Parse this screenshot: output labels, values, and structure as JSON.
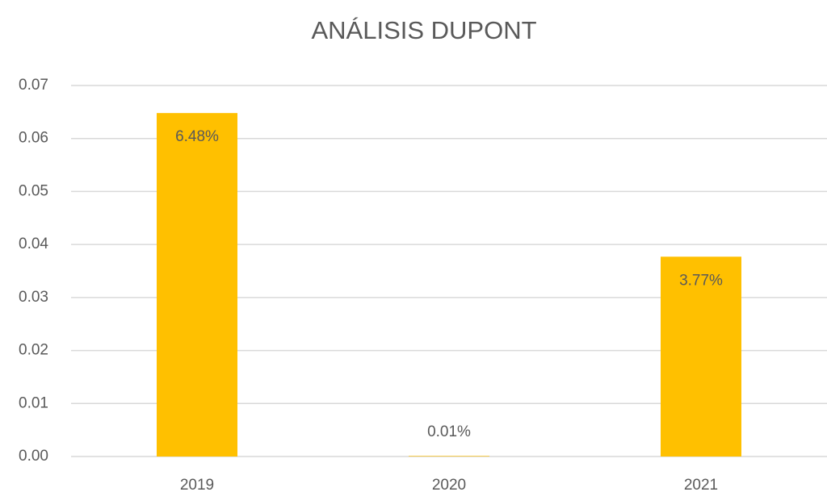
{
  "chart_data": {
    "type": "bar",
    "title": "ANÁLISIS DUPONT",
    "categories": [
      "2019",
      "2020",
      "2021"
    ],
    "values": [
      0.0648,
      0.0001,
      0.0377
    ],
    "value_labels": [
      "6.48%",
      "0.01%",
      "3.77%"
    ],
    "color": "#ffc000",
    "ylim": [
      0,
      0.07
    ],
    "yticks": [
      {
        "value": 0,
        "label": "0.00"
      },
      0.01,
      0.02,
      0.03,
      0.04,
      0.05,
      0.06,
      0.07
    ],
    "grid": true
  }
}
